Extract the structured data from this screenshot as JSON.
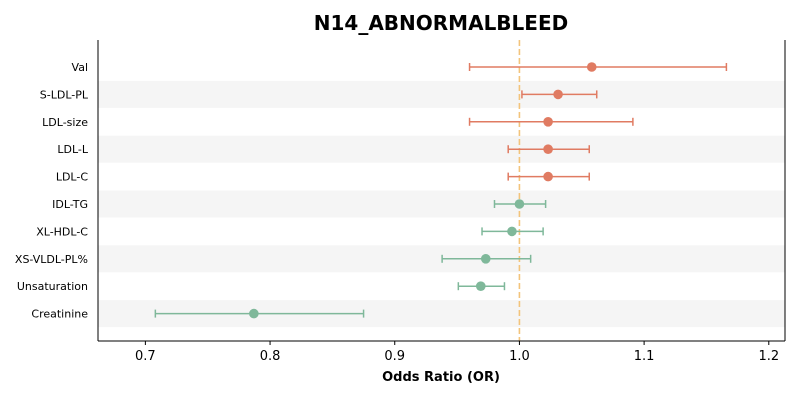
{
  "chart_data": {
    "type": "forest",
    "title": "N14_ABNORMALBLEED",
    "xlabel": "Odds Ratio (OR)",
    "xlim": [
      0.662,
      1.213
    ],
    "xticks": [
      "0.7",
      "0.8",
      "0.9",
      "1.0",
      "1.1",
      "1.2"
    ],
    "reference_line": 1.0,
    "colors": {
      "positive": "#E07B62",
      "negative": "#7FB89A",
      "reference": "#F3C47B",
      "band": "#F5F5F5"
    },
    "rows": [
      {
        "label": "Val",
        "or": 1.058,
        "lower": 0.96,
        "upper": 1.166,
        "direction": "positive"
      },
      {
        "label": "S-LDL-PL",
        "or": 1.031,
        "lower": 1.002,
        "upper": 1.062,
        "direction": "positive"
      },
      {
        "label": "LDL-size",
        "or": 1.023,
        "lower": 0.96,
        "upper": 1.091,
        "direction": "positive"
      },
      {
        "label": "LDL-L",
        "or": 1.023,
        "lower": 0.991,
        "upper": 1.056,
        "direction": "positive"
      },
      {
        "label": "LDL-C",
        "or": 1.023,
        "lower": 0.991,
        "upper": 1.056,
        "direction": "positive"
      },
      {
        "label": "IDL-TG",
        "or": 1.0,
        "lower": 0.98,
        "upper": 1.021,
        "direction": "negative"
      },
      {
        "label": "XL-HDL-C",
        "or": 0.994,
        "lower": 0.97,
        "upper": 1.019,
        "direction": "negative"
      },
      {
        "label": "XS-VLDL-PL%",
        "or": 0.973,
        "lower": 0.938,
        "upper": 1.009,
        "direction": "negative"
      },
      {
        "label": "Unsaturation",
        "or": 0.969,
        "lower": 0.951,
        "upper": 0.988,
        "direction": "negative"
      },
      {
        "label": "Creatinine",
        "or": 0.787,
        "lower": 0.708,
        "upper": 0.875,
        "direction": "negative"
      }
    ]
  }
}
